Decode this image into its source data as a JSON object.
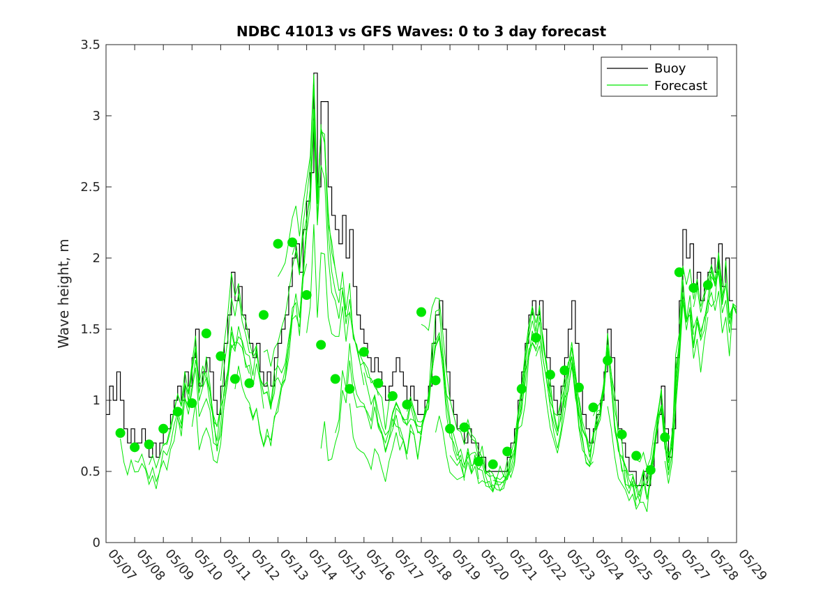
{
  "chart_data": {
    "type": "line",
    "title": "NDBC 41013 vs GFS Waves: 0 to 3 day forecast",
    "xlabel": "",
    "ylabel": "Wave height, m",
    "xlim": [
      "05/07",
      "05/29"
    ],
    "ylim": [
      0,
      3.5
    ],
    "x_ticks": [
      "05/07",
      "05/08",
      "05/09",
      "05/10",
      "05/11",
      "05/12",
      "05/13",
      "05/14",
      "05/15",
      "05/16",
      "05/17",
      "05/18",
      "05/19",
      "05/20",
      "05/21",
      "05/22",
      "05/23",
      "05/24",
      "05/25",
      "05/26",
      "05/27",
      "05/28",
      "05/29"
    ],
    "y_ticks": [
      "0",
      "0.5",
      "1",
      "1.5",
      "2",
      "2.5",
      "3",
      "3.5"
    ],
    "legend_position": "top-right",
    "grid": false,
    "colors": {
      "buoy": "#000000",
      "forecast": "#00e600"
    },
    "series": [
      {
        "name": "Buoy",
        "style": "line",
        "points": [
          [
            "05/07 00:00",
            0.9
          ],
          [
            "05/07 03:00",
            1.1
          ],
          [
            "05/07 06:00",
            1.0
          ],
          [
            "05/07 09:00",
            1.2
          ],
          [
            "05/07 12:00",
            1.0
          ],
          [
            "05/07 15:00",
            0.8
          ],
          [
            "05/07 18:00",
            0.7
          ],
          [
            "05/07 21:00",
            0.8
          ],
          [
            "05/08 00:00",
            0.7
          ],
          [
            "05/08 03:00",
            0.7
          ],
          [
            "05/08 06:00",
            0.8
          ],
          [
            "05/08 09:00",
            0.7
          ],
          [
            "05/08 12:00",
            0.6
          ],
          [
            "05/08 15:00",
            0.7
          ],
          [
            "05/08 18:00",
            0.6
          ],
          [
            "05/08 21:00",
            0.7
          ],
          [
            "05/09 00:00",
            0.8
          ],
          [
            "05/09 03:00",
            0.8
          ],
          [
            "05/09 06:00",
            0.9
          ],
          [
            "05/09 09:00",
            1.0
          ],
          [
            "05/09 12:00",
            1.1
          ],
          [
            "05/09 15:00",
            1.0
          ],
          [
            "05/09 18:00",
            1.2
          ],
          [
            "05/09 21:00",
            1.1
          ],
          [
            "05/10 00:00",
            1.3
          ],
          [
            "05/10 03:00",
            1.5
          ],
          [
            "05/10 06:00",
            1.1
          ],
          [
            "05/10 09:00",
            1.2
          ],
          [
            "05/10 12:00",
            1.3
          ],
          [
            "05/10 15:00",
            1.2
          ],
          [
            "05/10 18:00",
            1.0
          ],
          [
            "05/10 21:00",
            0.9
          ],
          [
            "05/11 00:00",
            1.1
          ],
          [
            "05/11 03:00",
            1.4
          ],
          [
            "05/11 06:00",
            1.6
          ],
          [
            "05/11 09:00",
            1.9
          ],
          [
            "05/11 12:00",
            1.7
          ],
          [
            "05/11 15:00",
            1.8
          ],
          [
            "05/11 18:00",
            1.6
          ],
          [
            "05/11 21:00",
            1.5
          ],
          [
            "05/12 00:00",
            1.4
          ],
          [
            "05/12 03:00",
            1.3
          ],
          [
            "05/12 06:00",
            1.4
          ],
          [
            "05/12 09:00",
            1.2
          ],
          [
            "05/12 12:00",
            1.1
          ],
          [
            "05/12 15:00",
            1.2
          ],
          [
            "05/12 18:00",
            1.1
          ],
          [
            "05/12 21:00",
            1.3
          ],
          [
            "05/13 00:00",
            1.4
          ],
          [
            "05/13 03:00",
            1.5
          ],
          [
            "05/13 06:00",
            1.6
          ],
          [
            "05/13 09:00",
            1.8
          ],
          [
            "05/13 12:00",
            2.0
          ],
          [
            "05/13 15:00",
            2.1
          ],
          [
            "05/13 18:00",
            1.9
          ],
          [
            "05/13 21:00",
            2.2
          ],
          [
            "05/14 00:00",
            2.4
          ],
          [
            "05/14 03:00",
            2.6
          ],
          [
            "05/14 06:00",
            3.3
          ],
          [
            "05/14 09:00",
            2.5
          ],
          [
            "05/14 12:00",
            3.1
          ],
          [
            "05/14 15:00",
            3.1
          ],
          [
            "05/14 18:00",
            2.5
          ],
          [
            "05/14 21:00",
            2.3
          ],
          [
            "05/15 00:00",
            2.2
          ],
          [
            "05/15 03:00",
            2.1
          ],
          [
            "05/15 06:00",
            2.3
          ],
          [
            "05/15 09:00",
            2.0
          ],
          [
            "05/15 12:00",
            2.2
          ],
          [
            "05/15 15:00",
            1.8
          ],
          [
            "05/15 18:00",
            1.6
          ],
          [
            "05/15 21:00",
            1.5
          ],
          [
            "05/16 00:00",
            1.4
          ],
          [
            "05/16 03:00",
            1.3
          ],
          [
            "05/16 06:00",
            1.2
          ],
          [
            "05/16 09:00",
            1.3
          ],
          [
            "05/16 12:00",
            1.2
          ],
          [
            "05/16 15:00",
            1.1
          ],
          [
            "05/16 18:00",
            1.0
          ],
          [
            "05/16 21:00",
            1.1
          ],
          [
            "05/17 00:00",
            1.2
          ],
          [
            "05/17 03:00",
            1.3
          ],
          [
            "05/17 06:00",
            1.2
          ],
          [
            "05/17 09:00",
            1.1
          ],
          [
            "05/17 12:00",
            1.0
          ],
          [
            "05/17 15:00",
            1.1
          ],
          [
            "05/17 18:00",
            1.0
          ],
          [
            "05/17 21:00",
            0.9
          ],
          [
            "05/18 00:00",
            0.9
          ],
          [
            "05/18 03:00",
            1.0
          ],
          [
            "05/18 06:00",
            1.1
          ],
          [
            "05/18 09:00",
            1.4
          ],
          [
            "05/18 12:00",
            1.6
          ],
          [
            "05/18 15:00",
            1.7
          ],
          [
            "05/18 18:00",
            1.5
          ],
          [
            "05/18 21:00",
            1.2
          ],
          [
            "05/19 00:00",
            1.0
          ],
          [
            "05/19 03:00",
            0.9
          ],
          [
            "05/19 06:00",
            0.8
          ],
          [
            "05/19 09:00",
            0.8
          ],
          [
            "05/19 12:00",
            0.7
          ],
          [
            "05/19 15:00",
            0.8
          ],
          [
            "05/19 18:00",
            0.7
          ],
          [
            "05/19 21:00",
            0.7
          ],
          [
            "05/20 00:00",
            0.6
          ],
          [
            "05/20 03:00",
            0.6
          ],
          [
            "05/20 06:00",
            0.5
          ],
          [
            "05/20 09:00",
            0.5
          ],
          [
            "05/20 12:00",
            0.5
          ],
          [
            "05/20 15:00",
            0.5
          ],
          [
            "05/20 18:00",
            0.5
          ],
          [
            "05/20 21:00",
            0.5
          ],
          [
            "05/21 00:00",
            0.6
          ],
          [
            "05/21 03:00",
            0.7
          ],
          [
            "05/21 06:00",
            0.8
          ],
          [
            "05/21 09:00",
            1.0
          ],
          [
            "05/21 12:00",
            1.2
          ],
          [
            "05/21 15:00",
            1.4
          ],
          [
            "05/21 18:00",
            1.6
          ],
          [
            "05/21 21:00",
            1.7
          ],
          [
            "05/22 00:00",
            1.6
          ],
          [
            "05/22 03:00",
            1.7
          ],
          [
            "05/22 06:00",
            1.5
          ],
          [
            "05/22 09:00",
            1.3
          ],
          [
            "05/22 12:00",
            1.1
          ],
          [
            "05/22 15:00",
            1.0
          ],
          [
            "05/22 18:00",
            0.9
          ],
          [
            "05/22 21:00",
            1.1
          ],
          [
            "05/23 00:00",
            1.3
          ],
          [
            "05/23 03:00",
            1.5
          ],
          [
            "05/23 06:00",
            1.7
          ],
          [
            "05/23 09:00",
            1.4
          ],
          [
            "05/23 12:00",
            1.1
          ],
          [
            "05/23 15:00",
            0.9
          ],
          [
            "05/23 18:00",
            0.8
          ],
          [
            "05/23 21:00",
            0.7
          ],
          [
            "05/24 00:00",
            0.8
          ],
          [
            "05/24 03:00",
            0.9
          ],
          [
            "05/24 06:00",
            1.0
          ],
          [
            "05/24 09:00",
            1.2
          ],
          [
            "05/24 12:00",
            1.5
          ],
          [
            "05/24 15:00",
            1.3
          ],
          [
            "05/24 18:00",
            1.0
          ],
          [
            "05/24 21:00",
            0.8
          ],
          [
            "05/25 00:00",
            0.7
          ],
          [
            "05/25 03:00",
            0.6
          ],
          [
            "05/25 06:00",
            0.5
          ],
          [
            "05/25 09:00",
            0.5
          ],
          [
            "05/25 12:00",
            0.4
          ],
          [
            "05/25 15:00",
            0.4
          ],
          [
            "05/25 18:00",
            0.5
          ],
          [
            "05/25 21:00",
            0.4
          ],
          [
            "05/26 00:00",
            0.5
          ],
          [
            "05/26 03:00",
            0.7
          ],
          [
            "05/26 06:00",
            0.9
          ],
          [
            "05/26 09:00",
            1.1
          ],
          [
            "05/26 12:00",
            0.8
          ],
          [
            "05/26 15:00",
            0.6
          ],
          [
            "05/26 18:00",
            0.8
          ],
          [
            "05/26 21:00",
            1.3
          ],
          [
            "05/27 00:00",
            1.7
          ],
          [
            "05/27 03:00",
            2.2
          ],
          [
            "05/27 06:00",
            2.0
          ],
          [
            "05/27 09:00",
            2.1
          ],
          [
            "05/27 12:00",
            1.8
          ],
          [
            "05/27 15:00",
            1.9
          ],
          [
            "05/27 18:00",
            1.7
          ],
          [
            "05/27 21:00",
            1.8
          ],
          [
            "05/28 00:00",
            1.9
          ],
          [
            "05/28 03:00",
            2.0
          ],
          [
            "05/28 06:00",
            1.9
          ],
          [
            "05/28 09:00",
            2.1
          ],
          [
            "05/28 12:00",
            1.8
          ],
          [
            "05/28 15:00",
            2.0
          ],
          [
            "05/28 18:00",
            1.7
          ]
        ]
      },
      {
        "name": "Forecast",
        "style": "multi-line",
        "analysis_markers": [
          [
            "05/07 12:00",
            0.77
          ],
          [
            "05/08 00:00",
            0.67
          ],
          [
            "05/08 12:00",
            0.69
          ],
          [
            "05/09 00:00",
            0.8
          ],
          [
            "05/09 12:00",
            0.92
          ],
          [
            "05/10 00:00",
            0.98
          ],
          [
            "05/10 12:00",
            1.47
          ],
          [
            "05/11 00:00",
            1.31
          ],
          [
            "05/11 12:00",
            1.15
          ],
          [
            "05/12 00:00",
            1.12
          ],
          [
            "05/12 12:00",
            1.6
          ],
          [
            "05/13 00:00",
            2.1
          ],
          [
            "05/13 12:00",
            2.11
          ],
          [
            "05/14 00:00",
            1.74
          ],
          [
            "05/14 12:00",
            1.39
          ],
          [
            "05/15 00:00",
            1.15
          ],
          [
            "05/15 12:00",
            1.08
          ],
          [
            "05/16 00:00",
            1.34
          ],
          [
            "05/16 12:00",
            1.12
          ],
          [
            "05/17 00:00",
            1.03
          ],
          [
            "05/17 12:00",
            0.97
          ],
          [
            "05/18 00:00",
            1.62
          ],
          [
            "05/18 12:00",
            1.14
          ],
          [
            "05/19 00:00",
            0.8
          ],
          [
            "05/19 12:00",
            0.81
          ],
          [
            "05/20 00:00",
            0.57
          ],
          [
            "05/20 12:00",
            0.55
          ],
          [
            "05/21 00:00",
            0.64
          ],
          [
            "05/21 12:00",
            1.08
          ],
          [
            "05/22 00:00",
            1.44
          ],
          [
            "05/22 12:00",
            1.18
          ],
          [
            "05/23 00:00",
            1.21
          ],
          [
            "05/23 12:00",
            1.09
          ],
          [
            "05/24 00:00",
            0.95
          ],
          [
            "05/24 12:00",
            1.28
          ],
          [
            "05/25 00:00",
            0.76
          ],
          [
            "05/25 12:00",
            0.61
          ],
          [
            "05/26 00:00",
            0.51
          ],
          [
            "05/26 12:00",
            0.74
          ],
          [
            "05/27 00:00",
            1.9
          ],
          [
            "05/27 12:00",
            1.79
          ],
          [
            "05/28 00:00",
            1.81
          ]
        ]
      }
    ]
  }
}
